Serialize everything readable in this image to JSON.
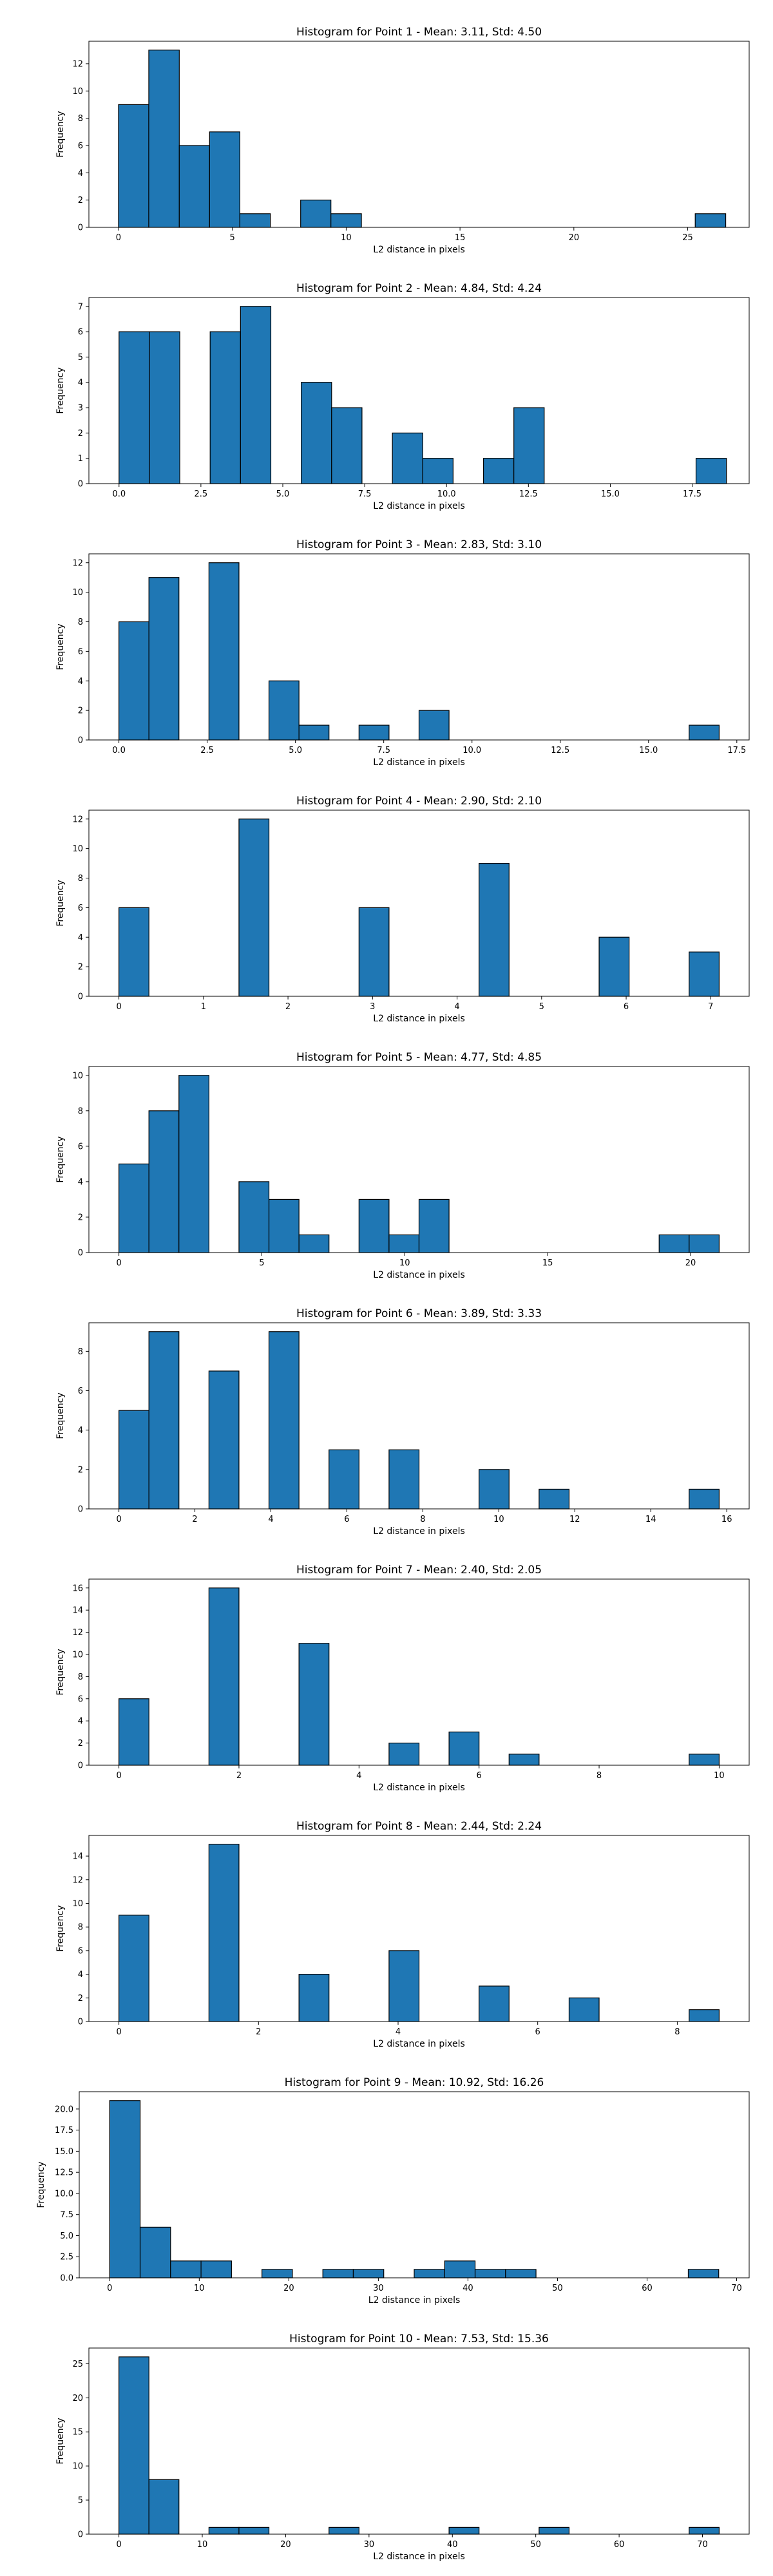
{
  "chart_data": [
    {
      "type": "bar",
      "title": "Histogram for Point 1 - Mean: 3.11, Std: 4.50",
      "xlabel": "L2 distance in pixels",
      "ylabel": "Frequency",
      "xlim": [
        -1.3,
        27.7
      ],
      "ylim": [
        0,
        13.65
      ],
      "xticks": [
        0,
        5,
        10,
        15,
        20,
        25
      ],
      "yticks": [
        0,
        2,
        4,
        6,
        8,
        10,
        12
      ],
      "bin_edges": [
        0,
        1.33,
        2.67,
        4.0,
        5.33,
        6.67,
        8.0,
        9.33,
        10.67,
        12.0,
        13.33,
        14.67,
        16.0,
        17.33,
        18.67,
        20.0,
        21.33,
        22.67,
        24.0,
        25.33,
        26.67
      ],
      "values": [
        9,
        13,
        6,
        7,
        1,
        0,
        2,
        1,
        0,
        0,
        0,
        0,
        0,
        0,
        0,
        0,
        0,
        0,
        0,
        1
      ],
      "color": "#1f77b4",
      "edge_color": "#000000"
    },
    {
      "type": "bar",
      "title": "Histogram for Point 2 - Mean: 4.84, Std: 4.24",
      "xlabel": "L2 distance in pixels",
      "ylabel": "Frequency",
      "xlim": [
        -0.92,
        19.24
      ],
      "ylim": [
        0,
        7.35
      ],
      "xticks": [
        0.0,
        2.5,
        5.0,
        7.5,
        10.0,
        12.5,
        15.0,
        17.5
      ],
      "xtick_labels": [
        "0.0",
        "2.5",
        "5.0",
        "7.5",
        "10.0",
        "12.5",
        "15.0",
        "17.5"
      ],
      "yticks": [
        0,
        1,
        2,
        3,
        4,
        5,
        6,
        7
      ],
      "bin_edges": [
        0,
        0.927,
        1.855,
        2.782,
        3.709,
        4.636,
        5.564,
        6.491,
        7.418,
        8.346,
        9.273,
        10.2,
        11.127,
        12.055,
        12.982,
        13.909,
        14.836,
        15.764,
        16.691,
        17.618,
        18.546
      ],
      "values": [
        6,
        6,
        0,
        6,
        7,
        0,
        4,
        3,
        0,
        2,
        1,
        0,
        1,
        3,
        0,
        0,
        0,
        0,
        0,
        1
      ],
      "color": "#1f77b4",
      "edge_color": "#000000"
    },
    {
      "type": "bar",
      "title": "Histogram for Point 3 - Mean: 2.83, Std: 3.10",
      "xlabel": "L2 distance in pixels",
      "ylabel": "Frequency",
      "xlim": [
        -0.85,
        17.85
      ],
      "ylim": [
        0,
        12.6
      ],
      "xticks": [
        0.0,
        2.5,
        5.0,
        7.5,
        10.0,
        12.5,
        15.0,
        17.5
      ],
      "xtick_labels": [
        "0.0",
        "2.5",
        "5.0",
        "7.5",
        "10.0",
        "12.5",
        "15.0",
        "17.5"
      ],
      "yticks": [
        0,
        2,
        4,
        6,
        8,
        10,
        12
      ],
      "bin_edges": [
        0,
        0.85,
        1.7,
        2.55,
        3.4,
        4.25,
        5.1,
        5.95,
        6.8,
        7.65,
        8.5,
        9.35,
        10.2,
        11.05,
        11.9,
        12.75,
        13.6,
        14.45,
        15.3,
        16.15,
        17.0
      ],
      "values": [
        8,
        11,
        0,
        12,
        0,
        4,
        1,
        0,
        1,
        0,
        2,
        0,
        0,
        0,
        0,
        0,
        0,
        0,
        0,
        1
      ],
      "color": "#1f77b4",
      "edge_color": "#000000"
    },
    {
      "type": "bar",
      "title": "Histogram for Point 4 - Mean: 2.90, Std: 2.10",
      "xlabel": "L2 distance in pixels",
      "ylabel": "Frequency",
      "xlim": [
        -0.355,
        7.455
      ],
      "ylim": [
        0,
        12.6
      ],
      "xticks": [
        0,
        1,
        2,
        3,
        4,
        5,
        6,
        7
      ],
      "yticks": [
        0,
        2,
        4,
        6,
        8,
        10,
        12
      ],
      "bin_edges": [
        0,
        0.355,
        0.71,
        1.065,
        1.42,
        1.775,
        2.13,
        2.485,
        2.84,
        3.195,
        3.55,
        3.905,
        4.26,
        4.615,
        4.97,
        5.325,
        5.68,
        6.035,
        6.39,
        6.745,
        7.1
      ],
      "values": [
        6,
        0,
        0,
        0,
        12,
        0,
        0,
        0,
        6,
        0,
        0,
        0,
        9,
        0,
        0,
        0,
        4,
        0,
        0,
        3
      ],
      "color": "#1f77b4",
      "edge_color": "#000000"
    },
    {
      "type": "bar",
      "title": "Histogram for Point 5 - Mean: 4.77, Std: 4.85",
      "xlabel": "L2 distance in pixels",
      "ylabel": "Frequency",
      "xlim": [
        -1.05,
        22.05
      ],
      "ylim": [
        0,
        10.5
      ],
      "xticks": [
        0,
        5,
        10,
        15,
        20
      ],
      "yticks": [
        0,
        2,
        4,
        6,
        8,
        10
      ],
      "bin_edges": [
        0,
        1.05,
        2.1,
        3.15,
        4.2,
        5.25,
        6.3,
        7.35,
        8.4,
        9.45,
        10.5,
        11.55,
        12.6,
        13.65,
        14.7,
        15.75,
        16.8,
        17.85,
        18.9,
        19.95,
        21.0
      ],
      "values": [
        5,
        8,
        10,
        0,
        4,
        3,
        1,
        0,
        3,
        1,
        3,
        0,
        0,
        0,
        0,
        0,
        0,
        0,
        1,
        1
      ],
      "color": "#1f77b4",
      "edge_color": "#000000"
    },
    {
      "type": "bar",
      "title": "Histogram for Point 6 - Mean: 3.89, Std: 3.33",
      "xlabel": "L2 distance in pixels",
      "ylabel": "Frequency",
      "xlim": [
        -0.79,
        16.59
      ],
      "ylim": [
        0,
        9.45
      ],
      "xticks": [
        0,
        2,
        4,
        6,
        8,
        10,
        12,
        14,
        16
      ],
      "yticks": [
        0,
        2,
        4,
        6,
        8
      ],
      "bin_edges": [
        0,
        0.79,
        1.58,
        2.37,
        3.16,
        3.95,
        4.74,
        5.53,
        6.32,
        7.11,
        7.9,
        8.69,
        9.48,
        10.27,
        11.06,
        11.85,
        12.64,
        13.43,
        14.22,
        15.01,
        15.8
      ],
      "values": [
        5,
        9,
        0,
        7,
        0,
        9,
        0,
        3,
        0,
        3,
        0,
        0,
        2,
        0,
        1,
        0,
        0,
        0,
        0,
        1
      ],
      "color": "#1f77b4",
      "edge_color": "#000000"
    },
    {
      "type": "bar",
      "title": "Histogram for Point 7 - Mean: 2.40, Std: 2.05",
      "xlabel": "L2 distance in pixels",
      "ylabel": "Frequency",
      "xlim": [
        -0.5,
        10.5
      ],
      "ylim": [
        0,
        16.8
      ],
      "xticks": [
        0,
        2,
        4,
        6,
        8,
        10
      ],
      "yticks": [
        0,
        2,
        4,
        6,
        8,
        10,
        12,
        14,
        16
      ],
      "bin_edges": [
        0,
        0.5,
        1.0,
        1.5,
        2.0,
        2.5,
        3.0,
        3.5,
        4.0,
        4.5,
        5.0,
        5.5,
        6.0,
        6.5,
        7.0,
        7.5,
        8.0,
        8.5,
        9.0,
        9.5,
        10.0
      ],
      "values": [
        6,
        0,
        0,
        16,
        0,
        0,
        11,
        0,
        0,
        2,
        0,
        3,
        0,
        1,
        0,
        0,
        0,
        0,
        0,
        1
      ],
      "color": "#1f77b4",
      "edge_color": "#000000"
    },
    {
      "type": "bar",
      "title": "Histogram for Point 8 - Mean: 2.44, Std: 2.24",
      "xlabel": "L2 distance in pixels",
      "ylabel": "Frequency",
      "xlim": [
        -0.43,
        9.03
      ],
      "ylim": [
        0,
        15.75
      ],
      "xticks": [
        0,
        2,
        4,
        6,
        8
      ],
      "yticks": [
        0,
        2,
        4,
        6,
        8,
        10,
        12,
        14
      ],
      "bin_edges": [
        0,
        0.43,
        0.86,
        1.29,
        1.72,
        2.15,
        2.58,
        3.01,
        3.44,
        3.87,
        4.3,
        4.73,
        5.16,
        5.59,
        6.02,
        6.45,
        6.88,
        7.31,
        7.74,
        8.17,
        8.6
      ],
      "values": [
        9,
        0,
        0,
        15,
        0,
        0,
        4,
        0,
        0,
        6,
        0,
        0,
        3,
        0,
        0,
        2,
        0,
        0,
        0,
        1
      ],
      "color": "#1f77b4",
      "edge_color": "#000000"
    },
    {
      "type": "bar",
      "title": "Histogram for Point 9 - Mean: 10.92, Std: 16.26",
      "xlabel": "L2 distance in pixels",
      "ylabel": "Frequency",
      "xlim": [
        -3.4,
        71.4
      ],
      "ylim": [
        0,
        22.05
      ],
      "xticks": [
        0,
        10,
        20,
        30,
        40,
        50,
        60,
        70
      ],
      "yticks": [
        0,
        2.5,
        5.0,
        7.5,
        10.0,
        12.5,
        15.0,
        17.5,
        20.0
      ],
      "ytick_labels": [
        "0.0",
        "2.5",
        "5.0",
        "7.5",
        "10.0",
        "12.5",
        "15.0",
        "17.5",
        "20.0"
      ],
      "bin_edges": [
        0,
        3.4,
        6.8,
        10.2,
        13.6,
        17.0,
        20.4,
        23.8,
        27.2,
        30.6,
        34.0,
        37.4,
        40.8,
        44.2,
        47.6,
        51.0,
        54.4,
        57.8,
        61.2,
        64.6,
        68.0
      ],
      "values": [
        21,
        6,
        2,
        2,
        0,
        1,
        0,
        1,
        1,
        0,
        1,
        2,
        1,
        1,
        0,
        0,
        0,
        0,
        0,
        1
      ],
      "color": "#1f77b4",
      "edge_color": "#000000"
    },
    {
      "type": "bar",
      "title": "Histogram for Point 10 - Mean: 7.53, Std: 15.36",
      "xlabel": "L2 distance in pixels",
      "ylabel": "Frequency",
      "xlim": [
        -3.6,
        75.6
      ],
      "ylim": [
        0,
        27.3
      ],
      "xticks": [
        0,
        10,
        20,
        30,
        40,
        50,
        60,
        70
      ],
      "yticks": [
        0,
        5,
        10,
        15,
        20,
        25
      ],
      "bin_edges": [
        0,
        3.6,
        7.2,
        10.8,
        14.4,
        18.0,
        21.6,
        25.2,
        28.8,
        32.4,
        36.0,
        39.6,
        43.2,
        46.8,
        50.4,
        54.0,
        57.6,
        61.2,
        64.8,
        68.4,
        72.0
      ],
      "values": [
        26,
        8,
        0,
        1,
        1,
        0,
        0,
        1,
        0,
        0,
        0,
        1,
        0,
        0,
        1,
        0,
        0,
        0,
        0,
        1
      ],
      "color": "#1f77b4",
      "edge_color": "#000000"
    }
  ]
}
